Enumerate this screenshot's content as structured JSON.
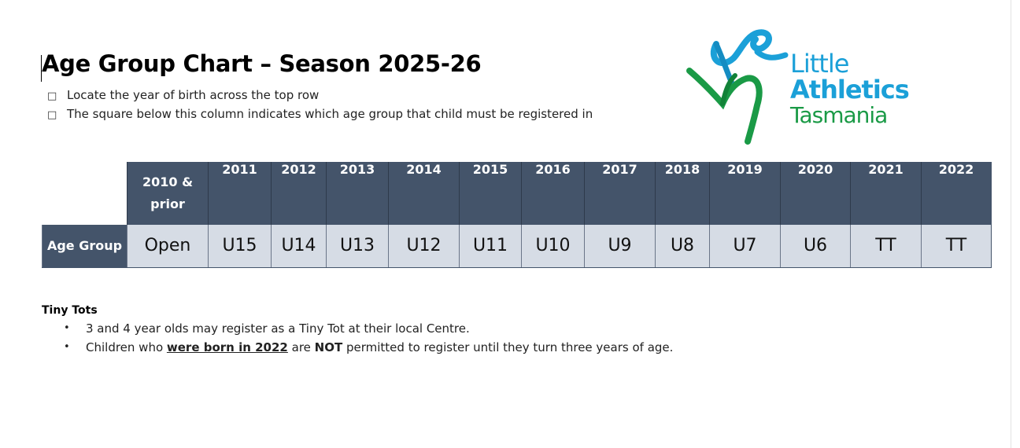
{
  "title": "Age Group Chart – Season 2025-26",
  "intro": [
    {
      "icon": "square-bullet-icon",
      "text": "Locate the year of birth across the top row"
    },
    {
      "icon": "square-bullet-icon",
      "text": "The square below this column indicates which age group that child must be registered in"
    }
  ],
  "logo": {
    "line1": "Little",
    "line2": "Athletics",
    "line3": "Tasmania",
    "colors": {
      "blue": "#1ba0d8",
      "green": "#1a9a46"
    }
  },
  "table": {
    "row_label": "Age Group",
    "first_year": [
      "2010 &",
      "prior"
    ],
    "years": [
      "2011",
      "2012",
      "2013",
      "2014",
      "2015",
      "2016",
      "2017",
      "2018",
      "2019",
      "2020",
      "2021",
      "2022"
    ],
    "groups": [
      "Open",
      "U15",
      "U14",
      "U13",
      "U12",
      "U11",
      "U10",
      "U9",
      "U8",
      "U7",
      "U6",
      "TT",
      "TT"
    ],
    "colors": {
      "header_bg": "#44546a",
      "cell_bg": "#d6dce5"
    }
  },
  "tiny_tots": {
    "heading": "Tiny Tots",
    "bullet1": "3 and 4 year olds may register as a Tiny Tot at their local Centre.",
    "bullet2_a": "Children who ",
    "bullet2_b": "were born in 2022",
    "bullet2_c": " are ",
    "bullet2_d": "NOT",
    "bullet2_e": " permitted to register until they turn three years of age."
  }
}
